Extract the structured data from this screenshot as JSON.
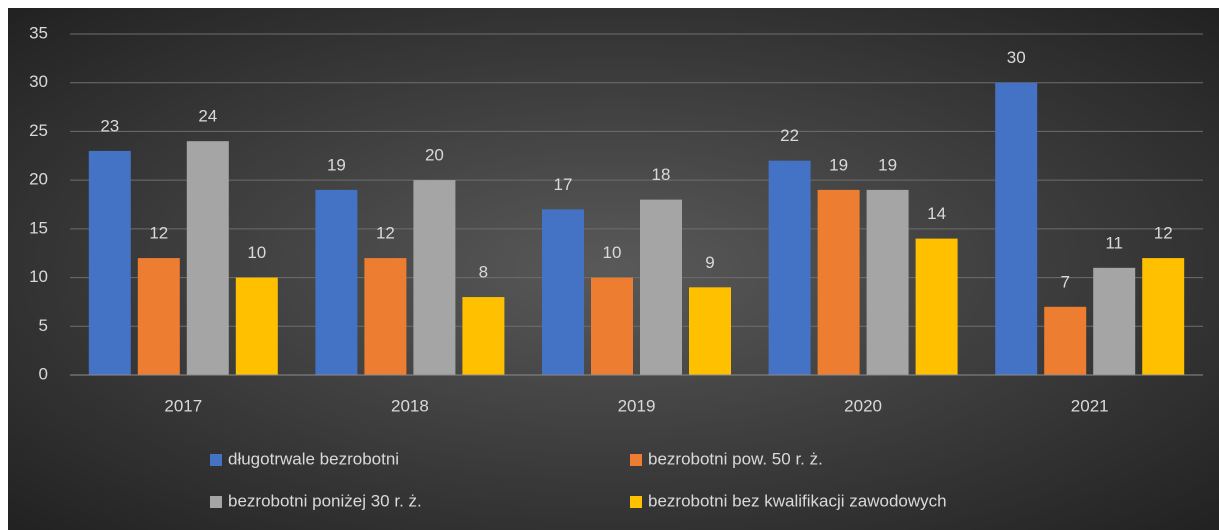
{
  "chart_data": {
    "type": "bar",
    "categories": [
      "2017",
      "2018",
      "2019",
      "2020",
      "2021"
    ],
    "series": [
      {
        "name": "długotrwale bezrobotni",
        "color": "#4472c4",
        "values": [
          23,
          19,
          17,
          22,
          30
        ]
      },
      {
        "name": "bezrobotni pow. 50 r. ż.",
        "color": "#ed7d31",
        "values": [
          12,
          12,
          10,
          19,
          7
        ]
      },
      {
        "name": "bezrobotni poniżej 30 r. ż.",
        "color": "#a5a5a5",
        "values": [
          24,
          20,
          18,
          19,
          11
        ]
      },
      {
        "name": "bezrobotni bez kwalifikacji zawodowych",
        "color": "#ffc000",
        "values": [
          10,
          8,
          9,
          14,
          12
        ]
      }
    ],
    "ylim": [
      0,
      35
    ],
    "yticks": [
      0,
      5,
      10,
      15,
      20,
      25,
      30,
      35
    ],
    "grid": true,
    "legend": "bottom"
  }
}
